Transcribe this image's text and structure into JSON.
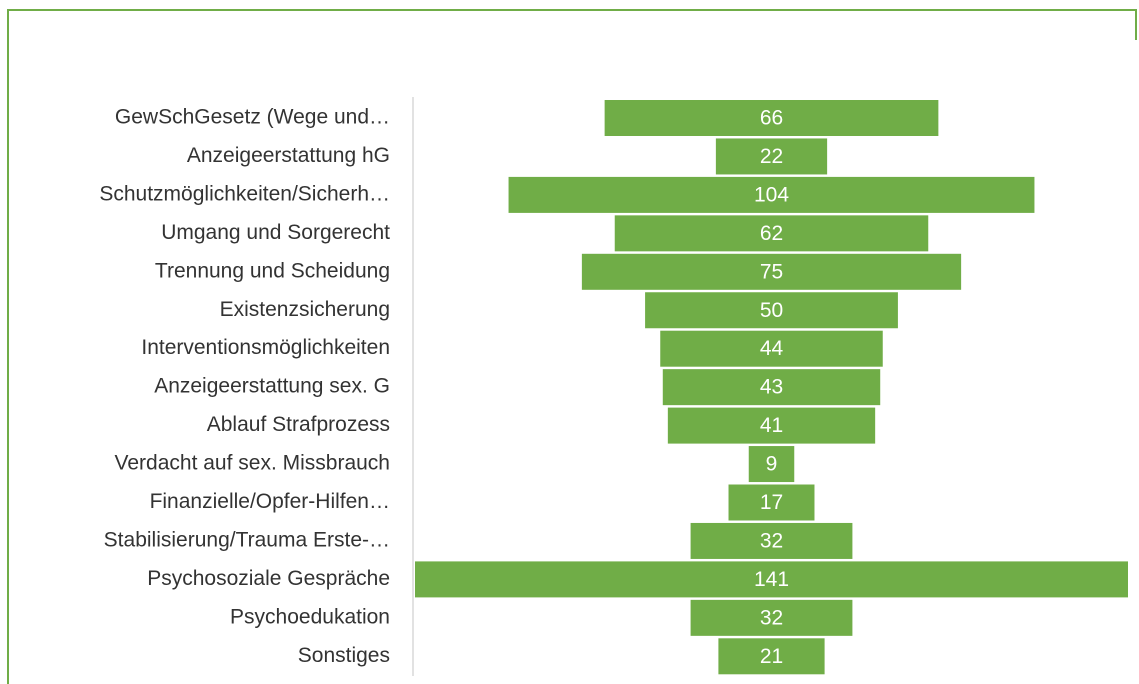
{
  "chart_data": {
    "type": "funnel",
    "categories": [
      "GewSchGesetz (Wege und…",
      "Anzeigeerstattung hG",
      "Schutzmöglichkeiten/Sicherh…",
      "Umgang und Sorgerecht",
      "Trennung und Scheidung",
      "Existenzsicherung",
      "Interventionsmöglichkeiten",
      "Anzeigeerstattung sex. G",
      "Ablauf Strafprozess",
      "Verdacht auf sex. Missbrauch",
      "Finanzielle/Opfer-Hilfen…",
      "Stabilisierung/Trauma Erste-…",
      "Psychosoziale Gespräche",
      "Psychoedukation",
      "Sonstiges"
    ],
    "values": [
      66,
      22,
      104,
      62,
      75,
      50,
      44,
      43,
      41,
      9,
      17,
      32,
      141,
      32,
      21
    ],
    "color": "#70ad47"
  }
}
